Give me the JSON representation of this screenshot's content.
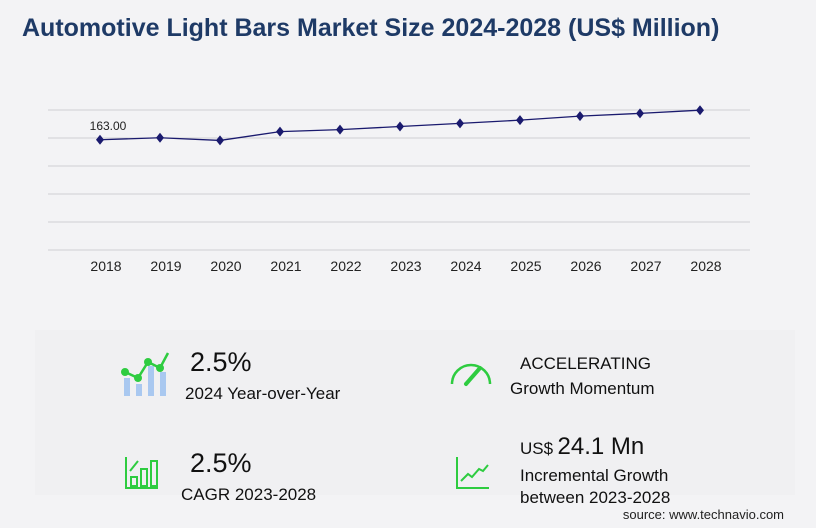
{
  "title": "Automotive Light Bars Market Size 2024-2028 (US$ Million)",
  "chart_data": {
    "type": "line",
    "title": "Automotive Light Bars Market Size 2024-2028 (US$ Million)",
    "categories": [
      "2018",
      "2019",
      "2020",
      "2021",
      "2022",
      "2023",
      "2024",
      "2025",
      "2026",
      "2027",
      "2028"
    ],
    "values": [
      163.0,
      166,
      162,
      175,
      178,
      182.6,
      187.2,
      192,
      198,
      202,
      206.7
    ],
    "data_labels": {
      "2018": "163.00"
    },
    "ylim": [
      0,
      207
    ],
    "grid": true,
    "color": "#1a1a6e"
  },
  "stats": {
    "yoy_value": "2.5%",
    "yoy_label": "2024 Year-over-Year",
    "momentum_value": "ACCELERATING",
    "momentum_label": "Growth Momentum",
    "cagr_value": "2.5%",
    "cagr_label": "CAGR 2023-2028",
    "incr_prefix": "US$",
    "incr_value": "24.1 Mn",
    "incr_label1": "Incremental Growth",
    "incr_label2": "between 2023-2028"
  },
  "source": "source: www.technavio.com",
  "colors": {
    "accent_green": "#2ecc40",
    "bar_blue": "#a9c8f0",
    "title": "#1e3a66"
  }
}
